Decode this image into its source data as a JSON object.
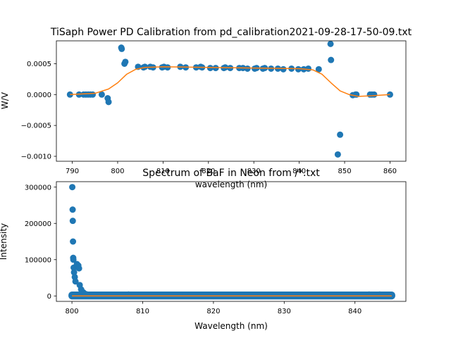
{
  "chart_data": [
    {
      "type": "scatter",
      "title": "TiSaph Power PD Calibration from pd_calibration2021-09-28-17-50-09.txt",
      "xlabel": "wavelength (nm)",
      "ylabel": "W/V",
      "xlim": [
        786.5,
        863.5
      ],
      "ylim": [
        -0.00108,
        0.00087
      ],
      "xticks": [
        790,
        800,
        810,
        820,
        830,
        840,
        850,
        860
      ],
      "xtick_labels": [
        "790",
        "800",
        "810",
        "820",
        "830",
        "840",
        "850",
        "860"
      ],
      "yticks": [
        0.0005,
        0.0,
        -0.0005,
        -0.001
      ],
      "ytick_labels": [
        "0.0005",
        "0.0000",
        "−0.0005",
        "−0.0010"
      ],
      "grid": false,
      "series": [
        {
          "kind": "points",
          "color": "#1f77b4",
          "x": [
            789.5,
            791.5,
            792.5,
            793.0,
            793.5,
            794.0,
            794.5,
            796.5,
            797.8,
            798.0,
            800.8,
            800.9,
            801.5,
            801.7,
            804.5,
            805.7,
            806.0,
            807.2,
            807.8,
            809.8,
            810.2,
            811.0,
            813.8,
            815.0,
            817.3,
            818.3,
            818.6,
            820.4,
            821.6,
            823.4,
            823.7,
            824.8,
            826.8,
            827.6,
            828.6,
            830.2,
            830.6,
            832.0,
            832.4,
            833.8,
            835.3,
            836.5,
            838.3,
            839.8,
            841.0,
            842.0,
            844.3,
            846.9,
            847.0,
            848.5,
            849.0,
            851.8,
            852.4,
            852.6,
            855.6,
            856.0,
            856.5,
            860.0
          ],
          "y": [
            0.0,
            0.0,
            0.0,
            0.0,
            0.0,
            0.0,
            0.0,
            0.0,
            -6e-05,
            -0.00012,
            0.00076,
            0.00074,
            0.0005,
            0.00053,
            0.00045,
            0.00044,
            0.00045,
            0.00045,
            0.00044,
            0.00044,
            0.00045,
            0.00044,
            0.00045,
            0.00044,
            0.00044,
            0.00045,
            0.00044,
            0.00043,
            0.00043,
            0.00043,
            0.00044,
            0.00043,
            0.00043,
            0.00043,
            0.00042,
            0.00042,
            0.00043,
            0.00042,
            0.00043,
            0.00042,
            0.00042,
            0.00041,
            0.00042,
            0.00041,
            0.00041,
            0.00042,
            0.00041,
            0.00082,
            0.00056,
            -0.00097,
            -0.00065,
            -1e-05,
            0.0,
            0.0,
            0.0,
            0.0,
            0.0,
            0.0
          ]
        },
        {
          "kind": "fit-line",
          "color": "#ff7f0e",
          "x": [
            789.5,
            795.0,
            798.0,
            800.0,
            802.0,
            804.0,
            806.0,
            810.0,
            820.0,
            830.0,
            840.0,
            843.0,
            845.0,
            847.0,
            849.0,
            851.0,
            853.0,
            856.0,
            860.0
          ],
          "y": [
            0.0,
            2e-05,
            9e-05,
            0.00019,
            0.00033,
            0.00041,
            0.00044,
            0.00045,
            0.00044,
            0.00043,
            0.00042,
            0.0004,
            0.00033,
            0.00019,
            6e-05,
            0.0,
            -3e-05,
            -2e-05,
            0.0
          ]
        }
      ]
    },
    {
      "type": "scatter",
      "title": "Spectrum of BaF in Neon from /*.txt",
      "xlabel": "Wavelength (nm)",
      "ylabel": "Intensity",
      "xlim": [
        797.8,
        847.2
      ],
      "ylim": [
        -15000,
        315000
      ],
      "xticks": [
        800,
        810,
        820,
        830,
        840
      ],
      "xtick_labels": [
        "800",
        "810",
        "820",
        "830",
        "840"
      ],
      "yticks": [
        0,
        100000,
        200000,
        300000
      ],
      "ytick_labels": [
        "0",
        "100000",
        "200000",
        "300000"
      ],
      "grid": false,
      "series": [
        {
          "kind": "points",
          "color": "#1f77b4",
          "x": [
            800.05,
            800.1,
            800.12,
            800.15,
            800.18,
            800.2,
            800.25,
            800.3,
            800.4,
            800.5,
            800.7,
            800.9,
            801.0,
            801.1,
            801.3,
            801.6,
            802.0,
            803.0,
            804.5,
            808.0,
            812.0,
            816.0,
            820.0,
            824.0,
            828.0,
            832.0,
            836.0,
            840.0,
            842.0,
            843.5,
            845.0
          ],
          "y": [
            300000,
            238000,
            207000,
            150000,
            105000,
            100000,
            78000,
            65000,
            52000,
            40000,
            88000,
            84000,
            76000,
            30000,
            18000,
            10000,
            5000,
            3000,
            2000,
            4000,
            2000,
            1500,
            1500,
            1500,
            1500,
            2000,
            3000,
            2000,
            4000,
            4000,
            3000
          ]
        },
        {
          "kind": "band",
          "color": "#1f77b4",
          "x": [
            800.0,
            845.2
          ],
          "y": [
            0,
            2500
          ]
        },
        {
          "kind": "fit-line",
          "color": "#ff7f0e",
          "x": [
            800.0,
            845.2
          ],
          "y": [
            0,
            0
          ]
        }
      ]
    }
  ]
}
